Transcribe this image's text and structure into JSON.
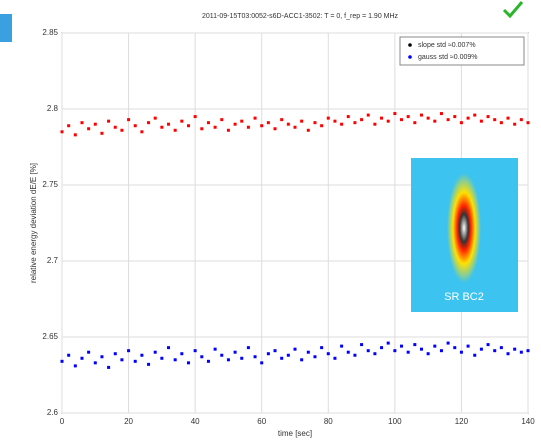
{
  "chart_data": {
    "type": "scatter",
    "title": "2011-09-15T03:0052-s6D-ACC1-3502: T = 0, f_rep = 1.90 MHz",
    "x_label": "time [sec]",
    "y_label": "relative energy deviation dE/E [%]",
    "inset_label": "SR BC2",
    "xlim": [
      0,
      140
    ],
    "xticks": [
      0,
      20,
      40,
      60,
      80,
      100,
      120,
      140
    ],
    "ylim": [
      2.6,
      2.85
    ],
    "yticks": [
      2.6,
      2.65,
      2.7,
      2.75,
      2.8,
      2.85
    ],
    "grid": true,
    "legend": "upper right",
    "x": [
      0,
      2,
      4,
      6,
      8,
      10,
      12,
      14,
      16,
      18,
      20,
      22,
      24,
      26,
      28,
      30,
      32,
      34,
      36,
      38,
      40,
      42,
      44,
      46,
      48,
      50,
      52,
      54,
      56,
      58,
      60,
      62,
      64,
      66,
      68,
      70,
      72,
      74,
      76,
      78,
      80,
      82,
      84,
      86,
      88,
      90,
      92,
      94,
      96,
      98,
      100,
      102,
      104,
      106,
      108,
      110,
      112,
      114,
      116,
      118,
      120,
      122,
      124,
      126,
      128,
      130,
      132,
      134,
      136,
      138,
      140
    ],
    "series": [
      {
        "name": "slope std ≈0.007%",
        "color": "#ff0000",
        "values": [
          2.785,
          2.789,
          2.783,
          2.791,
          2.787,
          2.79,
          2.784,
          2.792,
          2.788,
          2.786,
          2.793,
          2.789,
          2.785,
          2.791,
          2.794,
          2.788,
          2.79,
          2.786,
          2.792,
          2.789,
          2.795,
          2.787,
          2.791,
          2.788,
          2.793,
          2.786,
          2.79,
          2.792,
          2.788,
          2.794,
          2.789,
          2.791,
          2.787,
          2.793,
          2.79,
          2.788,
          2.792,
          2.786,
          2.791,
          2.789,
          2.794,
          2.792,
          2.79,
          2.795,
          2.791,
          2.793,
          2.796,
          2.79,
          2.794,
          2.792,
          2.797,
          2.793,
          2.795,
          2.791,
          2.796,
          2.794,
          2.792,
          2.797,
          2.793,
          2.795,
          2.791,
          2.794,
          2.796,
          2.792,
          2.795,
          2.793,
          2.791,
          2.794,
          2.79,
          2.793,
          2.791
        ]
      },
      {
        "name": "gauss std ≈0.009%",
        "color": "#0000ff",
        "values": [
          2.634,
          2.638,
          2.631,
          2.636,
          2.64,
          2.633,
          2.637,
          2.63,
          2.639,
          2.635,
          2.641,
          2.634,
          2.638,
          2.632,
          2.64,
          2.636,
          2.643,
          2.635,
          2.639,
          2.633,
          2.641,
          2.637,
          2.634,
          2.642,
          2.638,
          2.635,
          2.64,
          2.636,
          2.643,
          2.637,
          2.633,
          2.639,
          2.641,
          2.636,
          2.638,
          2.642,
          2.635,
          2.64,
          2.637,
          2.643,
          2.639,
          2.636,
          2.644,
          2.64,
          2.638,
          2.645,
          2.641,
          2.639,
          2.643,
          2.646,
          2.641,
          2.644,
          2.64,
          2.645,
          2.642,
          2.639,
          2.644,
          2.641,
          2.646,
          2.643,
          2.64,
          2.644,
          2.638,
          2.642,
          2.645,
          2.641,
          2.643,
          2.639,
          2.642,
          2.64,
          2.641
        ]
      }
    ]
  }
}
